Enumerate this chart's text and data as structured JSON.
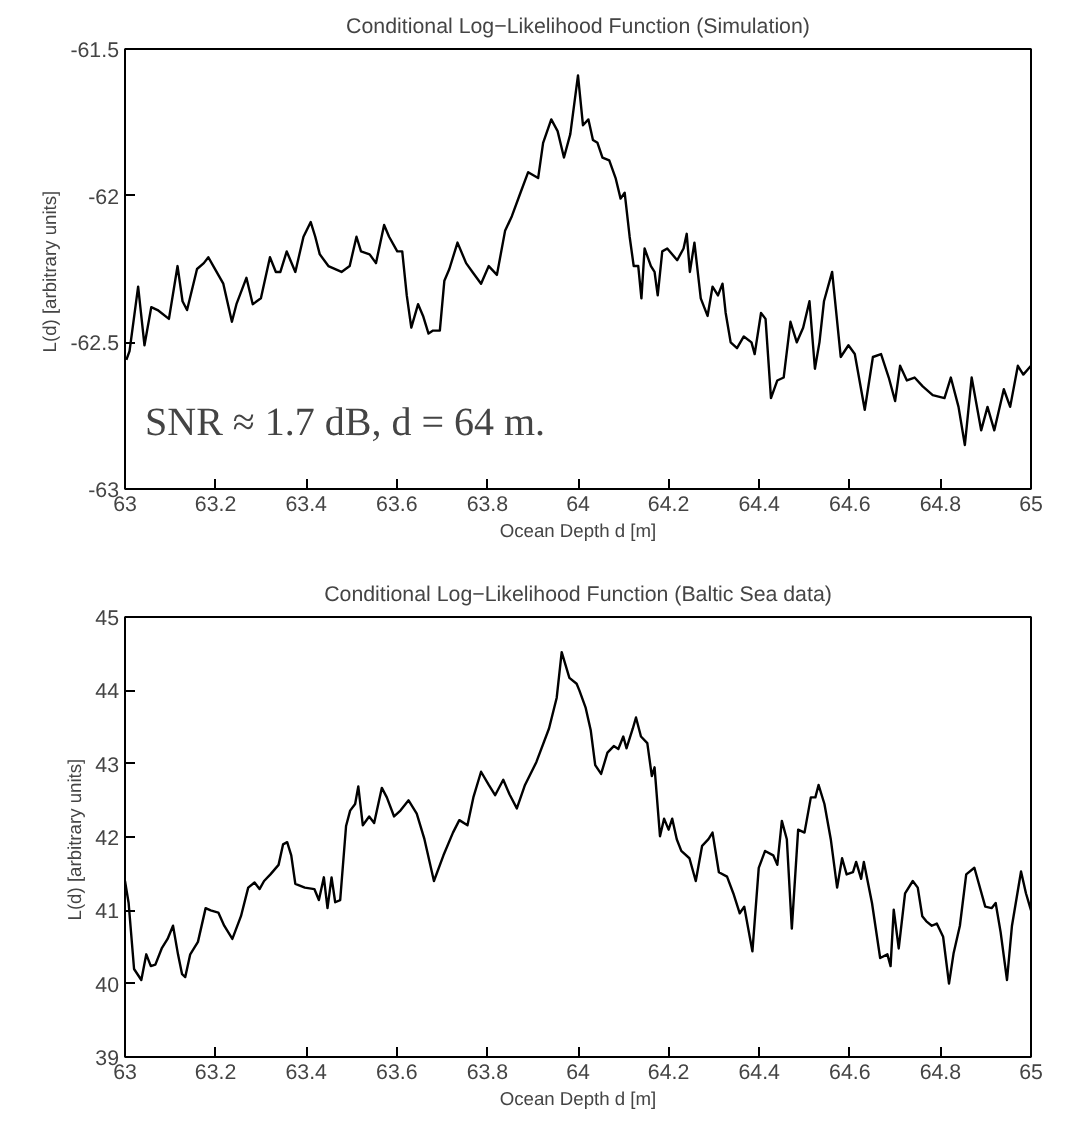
{
  "chart_data": [
    {
      "type": "line",
      "title": "Conditional Log−Likelihood Function (Simulation)",
      "xlabel": "Ocean Depth d [m]",
      "ylabel": "L(d)  [arbitrary units]",
      "xlim": [
        63,
        65
      ],
      "ylim": [
        -63,
        -61.5
      ],
      "xticks": [
        63,
        63.2,
        63.4,
        63.6,
        63.8,
        64,
        64.2,
        64.4,
        64.6,
        64.8,
        65
      ],
      "yticks": [
        -63,
        -62.5,
        -62,
        -61.5
      ],
      "grid": false,
      "annotations": [
        "SNR ≈ 1.7 dB, d = 64 m."
      ],
      "series": [
        {
          "color": "#000000",
          "x": [
            63.003,
            63.01,
            63.029,
            63.043,
            63.058,
            63.072,
            63.097,
            63.116,
            63.127,
            63.137,
            63.159,
            63.174,
            63.184,
            63.195,
            63.217,
            63.236,
            63.246,
            63.268,
            63.282,
            63.3,
            63.32,
            63.333,
            63.343,
            63.357,
            63.376,
            63.394,
            63.41,
            63.42,
            63.43,
            63.449,
            63.478,
            63.496,
            63.511,
            63.521,
            63.54,
            63.554,
            63.572,
            63.583,
            63.601,
            63.612,
            63.622,
            63.632,
            63.647,
            63.658,
            63.67,
            63.68,
            63.695,
            63.705,
            63.716,
            63.734,
            63.753,
            63.767,
            63.786,
            63.803,
            63.821,
            63.839,
            63.854,
            63.873,
            63.89,
            63.912,
            63.923,
            63.941,
            63.955,
            63.969,
            63.983,
            64.0,
            64.011,
            64.023,
            64.033,
            64.043,
            64.054,
            64.069,
            64.083,
            64.094,
            64.103,
            64.114,
            64.123,
            64.133,
            64.14,
            64.147,
            64.161,
            64.169,
            64.176,
            64.186,
            64.197,
            64.219,
            64.233,
            64.24,
            64.247,
            64.257,
            64.271,
            64.286,
            64.297,
            64.309,
            64.319,
            64.326,
            64.337,
            64.351,
            64.366,
            64.383,
            64.39,
            64.404,
            64.414,
            64.426,
            64.44,
            64.454,
            64.469,
            64.483,
            64.497,
            64.511,
            64.523,
            64.533,
            64.543,
            64.561,
            64.58,
            64.597,
            64.611,
            64.633,
            64.651,
            64.669,
            64.686,
            64.7,
            64.711,
            64.726,
            64.743,
            64.761,
            64.783,
            64.809,
            64.823,
            64.84,
            64.854,
            64.869,
            64.89,
            64.904,
            64.919,
            64.94,
            64.954,
            64.971,
            64.983,
            65.0
          ],
          "values": [
            -62.56,
            -62.53,
            -62.31,
            -62.51,
            -62.38,
            -62.39,
            -62.42,
            -62.24,
            -62.36,
            -62.39,
            -62.25,
            -62.23,
            -62.21,
            -62.24,
            -62.3,
            -62.43,
            -62.37,
            -62.28,
            -62.37,
            -62.35,
            -62.21,
            -62.26,
            -62.26,
            -62.19,
            -62.26,
            -62.14,
            -62.09,
            -62.14,
            -62.2,
            -62.24,
            -62.26,
            -62.24,
            -62.14,
            -62.19,
            -62.2,
            -62.23,
            -62.1,
            -62.14,
            -62.19,
            -62.19,
            -62.34,
            -62.45,
            -62.37,
            -62.41,
            -62.47,
            -62.46,
            -62.46,
            -62.29,
            -62.25,
            -62.16,
            -62.23,
            -62.26,
            -62.3,
            -62.24,
            -62.27,
            -62.12,
            -62.07,
            -61.99,
            -61.92,
            -61.94,
            -61.82,
            -61.74,
            -61.78,
            -61.87,
            -61.79,
            -61.59,
            -61.76,
            -61.74,
            -61.81,
            -61.82,
            -61.87,
            -61.88,
            -61.94,
            -62.01,
            -61.99,
            -62.14,
            -62.24,
            -62.24,
            -62.35,
            -62.18,
            -62.24,
            -62.26,
            -62.34,
            -62.19,
            -62.18,
            -62.22,
            -62.18,
            -62.13,
            -62.26,
            -62.16,
            -62.35,
            -62.41,
            -62.31,
            -62.34,
            -62.3,
            -62.4,
            -62.5,
            -62.52,
            -62.48,
            -62.5,
            -62.54,
            -62.4,
            -62.42,
            -62.69,
            -62.63,
            -62.62,
            -62.43,
            -62.5,
            -62.45,
            -62.36,
            -62.59,
            -62.5,
            -62.36,
            -62.26,
            -62.55,
            -62.51,
            -62.54,
            -62.73,
            -62.55,
            -62.54,
            -62.62,
            -62.7,
            -62.58,
            -62.63,
            -62.62,
            -62.65,
            -62.68,
            -62.69,
            -62.62,
            -62.72,
            -62.85,
            -62.62,
            -62.8,
            -62.72,
            -62.8,
            -62.66,
            -62.72,
            -62.58,
            -62.61,
            -62.58
          ]
        }
      ]
    },
    {
      "type": "line",
      "title": "Conditional Log−Likelihood Function (Baltic Sea data)",
      "xlabel": "Ocean Depth d [m]",
      "ylabel": "L(d)  [arbitrary units]",
      "xlim": [
        63,
        65
      ],
      "ylim": [
        39,
        45
      ],
      "xticks": [
        63,
        63.2,
        63.4,
        63.6,
        63.8,
        64,
        64.2,
        64.4,
        64.6,
        64.8,
        65
      ],
      "yticks": [
        39,
        40,
        41,
        42,
        43,
        44,
        45
      ],
      "grid": false,
      "series": [
        {
          "color": "#000000",
          "x": [
            63.0,
            63.008,
            63.02,
            63.036,
            63.047,
            63.057,
            63.067,
            63.081,
            63.094,
            63.106,
            63.117,
            63.126,
            63.133,
            63.144,
            63.161,
            63.178,
            63.189,
            63.206,
            63.219,
            63.237,
            63.256,
            63.272,
            63.286,
            63.297,
            63.307,
            63.321,
            63.339,
            63.349,
            63.358,
            63.367,
            63.376,
            63.397,
            63.418,
            63.428,
            63.439,
            63.447,
            63.456,
            63.464,
            63.475,
            63.488,
            63.497,
            63.508,
            63.515,
            63.525,
            63.539,
            63.55,
            63.567,
            63.578,
            63.594,
            63.608,
            63.626,
            63.644,
            63.661,
            63.682,
            63.703,
            63.724,
            63.738,
            63.756,
            63.769,
            63.786,
            63.803,
            63.817,
            63.835,
            63.849,
            63.865,
            63.883,
            63.908,
            63.936,
            63.953,
            63.964,
            63.981,
            63.997,
            64.003,
            64.017,
            64.028,
            64.038,
            64.051,
            64.065,
            64.079,
            64.089,
            64.1,
            64.107,
            64.121,
            64.128,
            64.139,
            64.153,
            64.163,
            64.169,
            64.181,
            64.19,
            64.2,
            64.208,
            64.218,
            64.228,
            64.246,
            64.26,
            64.274,
            64.288,
            64.297,
            64.311,
            64.329,
            64.343,
            64.357,
            64.367,
            64.385,
            64.399,
            64.413,
            64.431,
            64.44,
            64.45,
            64.461,
            64.472,
            64.486,
            64.5,
            64.514,
            64.524,
            64.531,
            64.544,
            64.558,
            64.572,
            64.583,
            64.593,
            64.607,
            64.614,
            64.625,
            64.631,
            64.649,
            64.667,
            64.683,
            64.69,
            64.697,
            64.708,
            64.722,
            64.739,
            64.75,
            64.76,
            64.769,
            64.781,
            64.792,
            64.806,
            64.819,
            64.829,
            64.843,
            64.857,
            64.875,
            64.899,
            64.913,
            64.922,
            64.933,
            64.947,
            64.958,
            64.978,
            64.989,
            65.0
          ],
          "values": [
            41.4,
            41.1,
            40.2,
            40.05,
            40.4,
            40.24,
            40.26,
            40.48,
            40.61,
            40.79,
            40.4,
            40.13,
            40.09,
            40.4,
            40.57,
            41.03,
            41.0,
            40.97,
            40.79,
            40.61,
            40.92,
            41.31,
            41.38,
            41.29,
            41.4,
            41.49,
            41.62,
            41.9,
            41.93,
            41.75,
            41.36,
            41.31,
            41.29,
            41.14,
            41.45,
            41.03,
            41.45,
            41.11,
            41.14,
            42.15,
            42.36,
            42.45,
            42.69,
            42.16,
            42.28,
            42.19,
            42.67,
            42.54,
            42.28,
            42.36,
            42.5,
            42.32,
            41.97,
            41.4,
            41.75,
            42.06,
            42.23,
            42.16,
            42.54,
            42.89,
            42.71,
            42.57,
            42.78,
            42.58,
            42.39,
            42.71,
            43.02,
            43.48,
            43.9,
            44.52,
            44.17,
            44.09,
            44.0,
            43.76,
            43.46,
            42.98,
            42.86,
            43.15,
            43.24,
            43.2,
            43.37,
            43.21,
            43.48,
            43.63,
            43.37,
            43.28,
            42.83,
            42.95,
            42.01,
            42.25,
            42.1,
            42.25,
            41.97,
            41.81,
            41.71,
            41.4,
            41.88,
            41.97,
            42.06,
            41.52,
            41.46,
            41.23,
            40.96,
            41.05,
            40.44,
            41.58,
            41.81,
            41.75,
            41.62,
            42.22,
            41.97,
            40.75,
            42.1,
            42.06,
            42.54,
            42.54,
            42.71,
            42.45,
            41.97,
            41.31,
            41.71,
            41.49,
            41.52,
            41.66,
            41.43,
            41.66,
            41.1,
            40.35,
            40.4,
            40.24,
            41.01,
            40.48,
            41.23,
            41.4,
            41.31,
            40.92,
            40.85,
            40.79,
            40.82,
            40.64,
            40.0,
            40.41,
            40.79,
            41.49,
            41.58,
            41.05,
            41.03,
            41.1,
            40.7,
            40.05,
            40.79,
            41.53,
            41.23,
            41.0
          ]
        }
      ]
    }
  ]
}
